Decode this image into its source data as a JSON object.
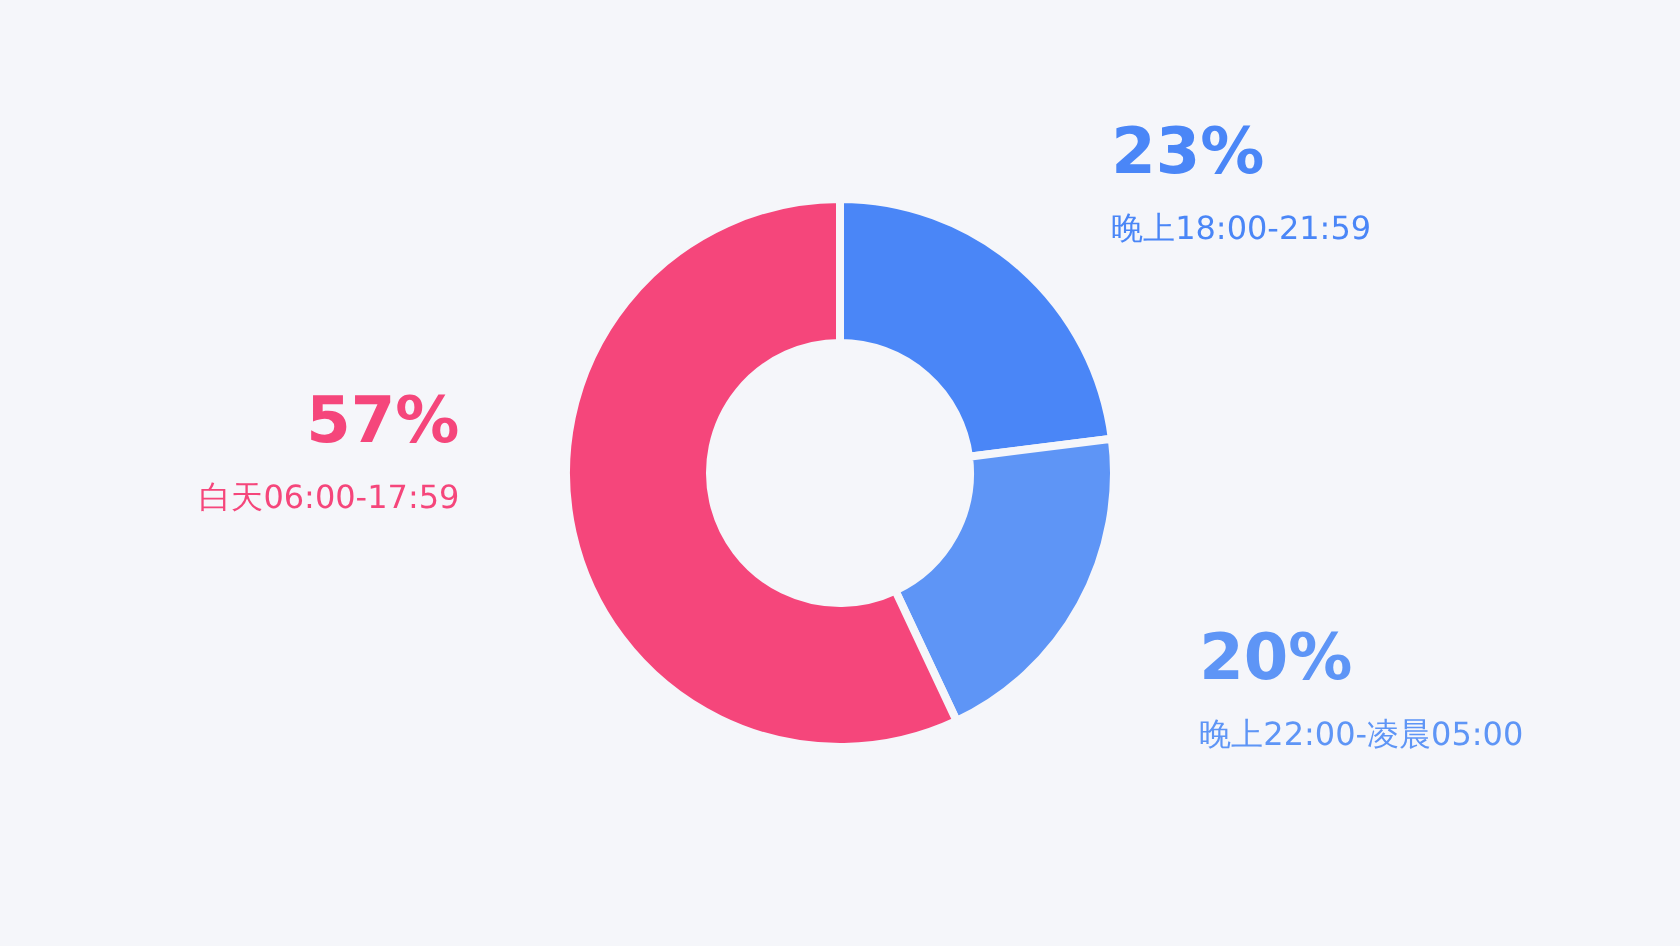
{
  "chart_data": {
    "type": "donut",
    "categories": [
      "晚上18:00-21:59",
      "晚上22:00-凌晨05:00",
      "白天06:00-17:59"
    ],
    "values": [
      23,
      20,
      57
    ],
    "value_labels": [
      "23%",
      "20%",
      "57%"
    ],
    "colors": [
      "#4a86f7",
      "#5e95f6",
      "#f5467b"
    ]
  }
}
